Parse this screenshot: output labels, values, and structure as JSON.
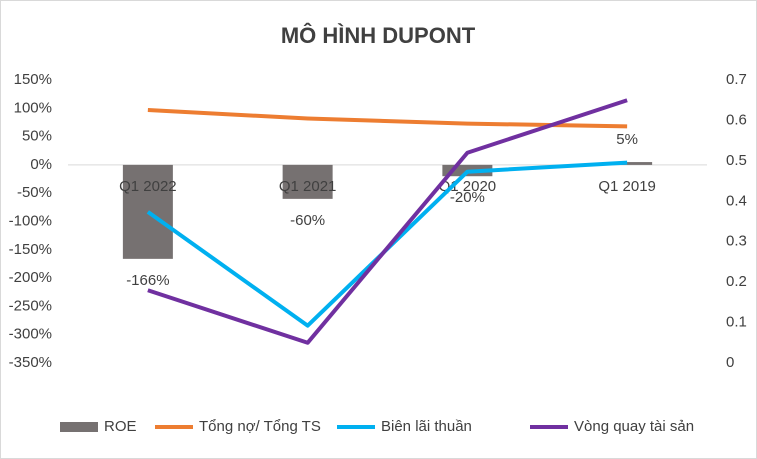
{
  "chart_data": {
    "type": "combo",
    "title": "MÔ HÌNH DUPONT",
    "categories": [
      "Q1 2022",
      "Q1 2021",
      "Q1 2020",
      "Q1 2019"
    ],
    "series": [
      {
        "name": "ROE",
        "type": "bar",
        "color": "#767171",
        "values": [
          -166,
          -60,
          -20,
          5
        ],
        "value_labels": [
          "-166%",
          "-60%",
          "-20%",
          "5%"
        ]
      },
      {
        "name": "Tổng nợ/ Tổng TS",
        "type": "line",
        "color": "#ed7d31",
        "values": [
          97,
          82,
          73,
          68
        ]
      },
      {
        "name": "Biên lãi thuần",
        "type": "line",
        "color": "#00b0f0",
        "values": [
          -83,
          -284,
          -12,
          4
        ]
      },
      {
        "name": "Vòng quay tài sản",
        "type": "line",
        "axis": "y2",
        "color": "#7030a0",
        "values": [
          0.18,
          0.05,
          0.52,
          0.65
        ]
      }
    ],
    "ylim": [
      -350,
      150
    ],
    "yticks": [
      {
        "value": 150,
        "label": "150%"
      },
      {
        "value": 100,
        "label": "100%"
      },
      {
        "value": 50,
        "label": "50%"
      },
      {
        "value": 0,
        "label": "0%"
      },
      {
        "value": -50,
        "label": "-50%"
      },
      {
        "value": -100,
        "label": "-100%"
      },
      {
        "value": -150,
        "label": "-150%"
      },
      {
        "value": -200,
        "label": "-200%"
      },
      {
        "value": -250,
        "label": "-250%"
      },
      {
        "value": -300,
        "label": "-300%"
      },
      {
        "value": -350,
        "label": "-350%"
      }
    ],
    "y2lim": [
      0,
      0.7
    ],
    "y2ticks": [
      0,
      0.1,
      0.2,
      0.3,
      0.4,
      0.5,
      0.6,
      0.7
    ],
    "legend": "bottom"
  }
}
